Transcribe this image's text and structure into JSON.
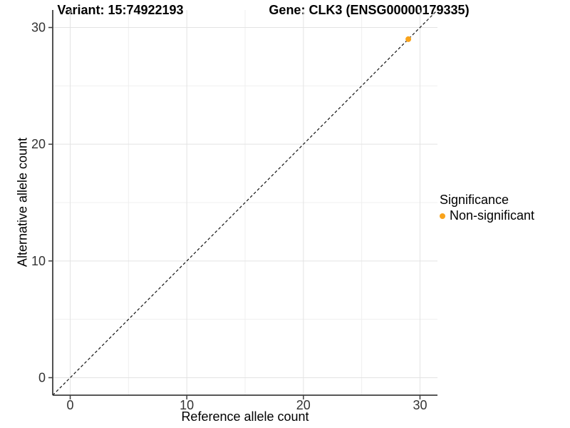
{
  "titles": {
    "left": "Variant: 15:74922193",
    "right": "Gene: CLK3 (ENSG00000179335)"
  },
  "legend": {
    "title": "Significance",
    "items": [
      {
        "label": "Non-significant",
        "color": "#F9A31B"
      }
    ]
  },
  "chart_data": {
    "type": "scatter",
    "title": "Variant: 15:74922193  |  Gene: CLK3 (ENSG00000179335)",
    "xlabel": "Reference allele count",
    "ylabel": "Alternative allele count",
    "xlim": [
      0,
      30
    ],
    "ylim": [
      0,
      30
    ],
    "axis_expand": 1.5,
    "xticks": [
      0,
      10,
      20,
      30
    ],
    "yticks": [
      0,
      10,
      20,
      30
    ],
    "minor_xticks": [
      5,
      15,
      25
    ],
    "minor_yticks": [
      5,
      15,
      25
    ],
    "grid": true,
    "legend_position": "right",
    "series": [
      {
        "name": "Non-significant",
        "color": "#F9A31B",
        "points": [
          [
            29,
            29
          ]
        ]
      }
    ],
    "reference_line": {
      "kind": "identity",
      "style": "dashed",
      "color": "#111111"
    },
    "colors": {
      "grid_major": "#E3E3E3",
      "grid_minor": "#EFEFEF",
      "axis_line": "#3F3F3F",
      "tick_label": "#333333",
      "background": "#FFFFFF"
    }
  }
}
